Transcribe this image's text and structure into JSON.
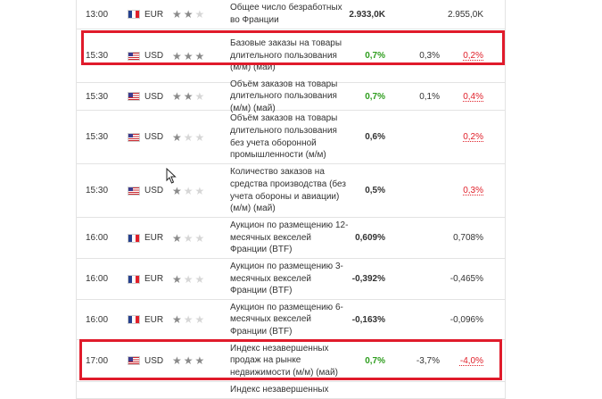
{
  "rows": [
    {
      "time": "13:00",
      "currency": "EUR",
      "flag": "fr",
      "importance": 2,
      "event": "Общее число безработных во Франции",
      "actual": "2.933,0K",
      "actual_class": "",
      "forecast": "",
      "previous": "2.955,0K",
      "previous_class": ""
    },
    {
      "time": "15:30",
      "currency": "USD",
      "flag": "us",
      "importance": 3,
      "event": "Базовые заказы на товары длительного пользования (м/м) (май)",
      "actual": "0,7%",
      "actual_class": "pos",
      "forecast": "0,3%",
      "previous": "0,2%",
      "previous_class": "red"
    },
    {
      "time": "15:30",
      "currency": "USD",
      "flag": "us",
      "importance": 2,
      "event": "Объём заказов на товары длительного пользования (м/м) (май)",
      "actual": "0,7%",
      "actual_class": "pos",
      "forecast": "0,1%",
      "previous": "0,4%",
      "previous_class": "red"
    },
    {
      "time": "15:30",
      "currency": "USD",
      "flag": "us",
      "importance": 1,
      "event": "Объём заказов на товары длительного пользования без учета оборонной промышленности (м/м)",
      "actual": "0,6%",
      "actual_class": "",
      "forecast": "",
      "previous": "0,2%",
      "previous_class": "red"
    },
    {
      "time": "15:30",
      "currency": "USD",
      "flag": "us",
      "importance": 1,
      "event": "Количество заказов на средства производства (без учета обороны и авиации) (м/м) (май)",
      "actual": "0,5%",
      "actual_class": "",
      "forecast": "",
      "previous": "0,3%",
      "previous_class": "red"
    },
    {
      "time": "16:00",
      "currency": "EUR",
      "flag": "fr",
      "importance": 1,
      "event": "Аукцион по размещению 12-месячных векселей Франции (BTF)",
      "actual": "0,609%",
      "actual_class": "",
      "forecast": "",
      "previous": "0,708%",
      "previous_class": ""
    },
    {
      "time": "16:00",
      "currency": "EUR",
      "flag": "fr",
      "importance": 1,
      "event": "Аукцион по размещению 3-месячных векселей Франции (BTF)",
      "actual": "-0,392%",
      "actual_class": "",
      "forecast": "",
      "previous": "-0,465%",
      "previous_class": ""
    },
    {
      "time": "16:00",
      "currency": "EUR",
      "flag": "fr",
      "importance": 1,
      "event": "Аукцион по размещению 6-месячных векселей Франции (BTF)",
      "actual": "-0,163%",
      "actual_class": "",
      "forecast": "",
      "previous": "-0,096%",
      "previous_class": ""
    },
    {
      "time": "17:00",
      "currency": "USD",
      "flag": "us",
      "importance": 3,
      "event": "Индекс незавершенных продаж на рынке недвижимости (м/м) (май)",
      "actual": "0,7%",
      "actual_class": "pos",
      "forecast": "-3,7%",
      "previous": "-4,0%",
      "previous_class": "red"
    },
    {
      "time": "",
      "currency": "",
      "flag": "",
      "importance": 0,
      "event": "Индекс незавершенных",
      "actual": "",
      "actual_class": "",
      "forecast": "",
      "previous": "",
      "previous_class": ""
    }
  ]
}
